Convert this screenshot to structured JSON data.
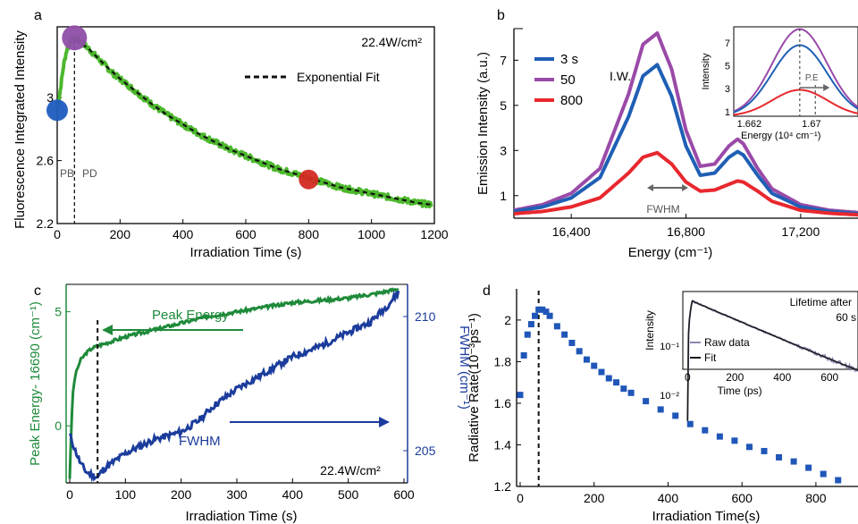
{
  "colors": {
    "green_series": "#4cb82c",
    "dark_green": "#1e8a3a",
    "navy": "#1b3c9c",
    "blue_3s": "#1f5fb5",
    "purple_50": "#9a4aa8",
    "red_800": "#e8282e",
    "marker_blue": "#1f5cc0",
    "marker_purple": "#8e4ea6",
    "marker_red": "#d42a24",
    "axis": "#000000",
    "gray_text": "#555555",
    "inset_line": "#1a1a1a",
    "inset_raw": "#8a86b0"
  },
  "chart_data": [
    {
      "panel": "a",
      "type": "scatter",
      "xlabel": "Irradiation Time (s)",
      "ylabel": "Fluorescence Integrated Intensity",
      "xlim": [
        0,
        1200
      ],
      "ylim": [
        2.2,
        3.45
      ],
      "xticks": [
        "0",
        "200",
        "400",
        "600",
        "800",
        "1000",
        "1200"
      ],
      "yticks": [
        "2.2",
        "2.6",
        "3"
      ],
      "annotations": {
        "power": "22.4W/cm²",
        "fit_legend": "Exponential Fit",
        "pb": "PB",
        "pd": "PD"
      },
      "series": [
        {
          "name": "",
          "x": [
            0,
            5,
            10,
            20,
            30,
            40,
            50,
            55,
            60,
            70,
            80,
            90,
            100,
            120,
            140,
            160,
            180,
            200,
            250,
            300,
            350,
            400,
            450,
            500,
            550,
            600,
            650,
            700,
            750,
            800,
            850,
            900,
            950,
            1000,
            1050,
            1100,
            1150,
            1190
          ],
          "y": [
            2.92,
            2.98,
            3.05,
            3.2,
            3.3,
            3.35,
            3.37,
            3.37,
            3.37,
            3.36,
            3.35,
            3.33,
            3.31,
            3.27,
            3.23,
            3.19,
            3.15,
            3.12,
            3.04,
            2.96,
            2.89,
            2.83,
            2.77,
            2.72,
            2.67,
            2.63,
            2.59,
            2.55,
            2.52,
            2.49,
            2.46,
            2.43,
            2.41,
            2.39,
            2.37,
            2.35,
            2.33,
            2.32
          ]
        },
        {
          "name": "Exponential Fit",
          "x": [
            60,
            100,
            150,
            200,
            250,
            300,
            350,
            400,
            450,
            500,
            550,
            600,
            650,
            700,
            750,
            800,
            850,
            900,
            950,
            1000,
            1050,
            1100,
            1150,
            1190
          ],
          "y": [
            3.37,
            3.31,
            3.21,
            3.12,
            3.04,
            2.96,
            2.89,
            2.83,
            2.77,
            2.72,
            2.67,
            2.63,
            2.59,
            2.55,
            2.52,
            2.49,
            2.46,
            2.43,
            2.41,
            2.39,
            2.37,
            2.35,
            2.33,
            2.32
          ]
        }
      ],
      "markers": [
        {
          "x": 0,
          "y": 2.92,
          "color": "blue"
        },
        {
          "x": 55,
          "y": 3.38,
          "color": "purple"
        },
        {
          "x": 800,
          "y": 2.48,
          "color": "red"
        }
      ],
      "vline_x": 55
    },
    {
      "panel": "b",
      "type": "line",
      "xlabel": "Energy (cm⁻¹)",
      "ylabel": "Emission Intensity (a.u.)",
      "xlim": [
        16200,
        17400
      ],
      "ylim": [
        0,
        8.4
      ],
      "xticks": [
        "16,400",
        "16,800",
        "17,200"
      ],
      "yticks": [
        "1",
        "3",
        "5",
        "7"
      ],
      "legend": [
        "3 s",
        "50",
        "800"
      ],
      "annotations": {
        "iw": "I.W.",
        "fwhm": "FWHM"
      },
      "series": [
        {
          "name": "3 s",
          "x": [
            16200,
            16300,
            16400,
            16500,
            16600,
            16650,
            16700,
            16750,
            16800,
            16850,
            16900,
            16950,
            16980,
            17000,
            17050,
            17100,
            17200,
            17300,
            17400
          ],
          "y": [
            0.3,
            0.5,
            0.9,
            1.8,
            4.5,
            6.3,
            6.8,
            5.4,
            3.2,
            1.9,
            2.0,
            2.7,
            2.95,
            2.8,
            1.9,
            1.1,
            0.5,
            0.3,
            0.2
          ]
        },
        {
          "name": "50",
          "x": [
            16200,
            16300,
            16400,
            16500,
            16600,
            16650,
            16700,
            16750,
            16800,
            16850,
            16900,
            16950,
            16980,
            17000,
            17050,
            17100,
            17200,
            17300,
            17400
          ],
          "y": [
            0.35,
            0.6,
            1.1,
            2.2,
            5.5,
            7.7,
            8.2,
            6.6,
            3.9,
            2.3,
            2.4,
            3.2,
            3.5,
            3.3,
            2.2,
            1.3,
            0.6,
            0.35,
            0.25
          ]
        },
        {
          "name": "800",
          "x": [
            16200,
            16300,
            16400,
            16500,
            16600,
            16650,
            16700,
            16750,
            16800,
            16850,
            16900,
            16950,
            16980,
            17000,
            17050,
            17100,
            17200,
            17300,
            17400
          ],
          "y": [
            0.2,
            0.3,
            0.5,
            0.9,
            2.0,
            2.7,
            2.9,
            2.4,
            1.6,
            1.2,
            1.25,
            1.5,
            1.65,
            1.6,
            1.2,
            0.75,
            0.35,
            0.22,
            0.15
          ]
        }
      ],
      "inset": {
        "xlabel": "Energy (10⁴ cm⁻¹)",
        "ylabel": "Intensity",
        "xlim": [
          1.66,
          1.676
        ],
        "ylim": [
          0.6,
          8.4
        ],
        "xticks": [
          "1.662",
          "1.67",
          "1.67"
        ],
        "yticks": [
          "1",
          "3",
          "5",
          "7"
        ],
        "label": "P.E"
      }
    },
    {
      "panel": "c",
      "type": "line",
      "xlabel": "Irradiation Time (s)",
      "ylabel": "Peak Energy- 16690 (cm⁻¹)",
      "y2label": "FWHM (cm⁻¹)",
      "xlim": [
        0,
        600
      ],
      "ylim": [
        -2.5,
        6.2
      ],
      "y2lim": [
        203.8,
        211.2
      ],
      "xticks": [
        "0",
        "100",
        "200",
        "300",
        "400",
        "500",
        "600"
      ],
      "yticks": [
        "0",
        "5"
      ],
      "y2ticks": [
        "205",
        "210"
      ],
      "annotations": {
        "peak": "Peak Energy",
        "fwhm": "FWHM",
        "power": "22.4W/cm²"
      },
      "series": [
        {
          "name": "Peak Energy",
          "x": [
            0,
            3,
            6,
            10,
            15,
            20,
            30,
            40,
            50,
            75,
            100,
            150,
            200,
            250,
            300,
            350,
            400,
            450,
            500,
            550,
            590
          ],
          "y": [
            -2.3,
            0,
            1.5,
            2.2,
            2.6,
            2.9,
            3.2,
            3.4,
            3.5,
            3.7,
            3.9,
            4.2,
            4.5,
            4.8,
            5.0,
            5.2,
            5.4,
            5.5,
            5.6,
            5.8,
            6.0
          ]
        },
        {
          "name": "FWHM",
          "x": [
            0,
            5,
            10,
            20,
            30,
            40,
            50,
            60,
            80,
            100,
            150,
            200,
            230,
            260,
            300,
            350,
            400,
            450,
            500,
            540,
            570,
            590
          ],
          "y": [
            205.6,
            205.3,
            205.0,
            204.5,
            204.2,
            204.1,
            204.0,
            204.3,
            204.6,
            204.9,
            205.4,
            205.7,
            206.1,
            206.7,
            207.3,
            207.9,
            208.5,
            208.9,
            209.4,
            209.8,
            210.4,
            210.9
          ]
        }
      ],
      "vline_x": 50
    },
    {
      "panel": "d",
      "type": "scatter",
      "xlabel": "Irradiation Time(s)",
      "ylabel": "Radiative Rate(10⁻³ps⁻¹)",
      "xlim": [
        0,
        880
      ],
      "ylim": [
        1.2,
        2.15
      ],
      "xticks": [
        "0",
        "200",
        "400",
        "600",
        "800"
      ],
      "yticks": [
        "1.2",
        "1.4",
        "1.6",
        "1.8",
        "2"
      ],
      "series": [
        {
          "name": "",
          "x": [
            0,
            10,
            20,
            30,
            40,
            50,
            60,
            70,
            80,
            100,
            120,
            140,
            160,
            180,
            200,
            220,
            240,
            260,
            280,
            300,
            340,
            380,
            420,
            460,
            500,
            540,
            580,
            620,
            660,
            700,
            740,
            780,
            820,
            860
          ],
          "y": [
            1.64,
            1.83,
            1.93,
            1.98,
            2.02,
            2.05,
            2.05,
            2.04,
            2.02,
            1.97,
            1.93,
            1.89,
            1.85,
            1.81,
            1.78,
            1.75,
            1.72,
            1.7,
            1.67,
            1.65,
            1.61,
            1.57,
            1.54,
            1.5,
            1.47,
            1.44,
            1.42,
            1.39,
            1.37,
            1.34,
            1.32,
            1.29,
            1.26,
            1.23
          ]
        }
      ],
      "vline_x": 50,
      "inset": {
        "title_line1": "Lifetime after",
        "title_line2": "60 s",
        "xlabel": "Time (ps)",
        "ylabel": "Intensity",
        "xlim": [
          -20,
          720
        ],
        "xticks": [
          "0",
          "200",
          "400",
          "600"
        ],
        "yticks": [
          "10⁻¹",
          "10⁻²"
        ],
        "legend": [
          "Raw data",
          "Fit"
        ]
      }
    }
  ],
  "panel_labels": [
    "a",
    "b",
    "c",
    "d"
  ]
}
